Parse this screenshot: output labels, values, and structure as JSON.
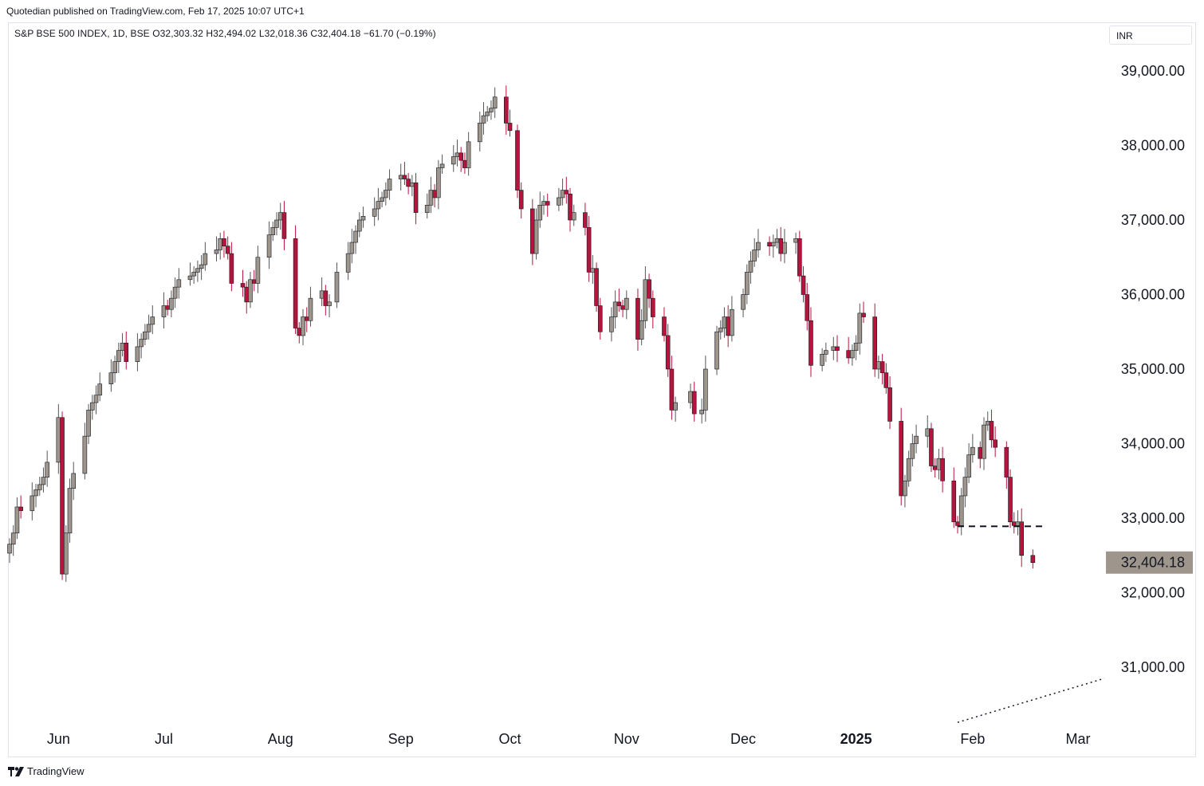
{
  "header": {
    "published_line": "Quotedian published on TradingView.com, Feb 17, 2025 10:07 UTC+1",
    "legend_text": "S&P BSE 500 INDEX, 1D, BSE  O32,303.32  H32,494.02  L32,018.36  C32,404.18  −61.70 (−0.19%)",
    "currency": "INR"
  },
  "footer": {
    "brand": "TradingView"
  },
  "colors": {
    "up": "#9e968c",
    "down": "#b5153d",
    "wick_down": "#b5153d",
    "wick_up": "#555555",
    "last_label_bg": "#9e968c"
  },
  "chart_data": {
    "type": "candlestick",
    "symbol": "S&P BSE 500 INDEX",
    "interval": "1D",
    "ylim": [
      30200,
      39700
    ],
    "y_ticks": [
      "39,000.00",
      "38,000.00",
      "37,000.00",
      "36,000.00",
      "35,000.00",
      "34,000.00",
      "33,000.00",
      "32,000.00",
      "31,000.00"
    ],
    "y_tick_values": [
      39000,
      38000,
      37000,
      36000,
      35000,
      34000,
      33000,
      32000,
      31000
    ],
    "x_ticks": [
      {
        "label": "Jun",
        "date": "2024-06-03"
      },
      {
        "label": "Jul",
        "date": "2024-07-01"
      },
      {
        "label": "Aug",
        "date": "2024-08-01"
      },
      {
        "label": "Sep",
        "date": "2024-09-02"
      },
      {
        "label": "Oct",
        "date": "2024-10-01"
      },
      {
        "label": "Nov",
        "date": "2024-11-01"
      },
      {
        "label": "Dec",
        "date": "2024-12-02"
      },
      {
        "label": "2025",
        "date": "2025-01-01",
        "bold": true
      },
      {
        "label": "Feb",
        "date": "2025-02-01"
      },
      {
        "label": "Mar",
        "date": "2025-03-01"
      }
    ],
    "last_price_label": "32,404.18",
    "last_price": 32404.18,
    "support_line": {
      "value": 32890,
      "from": "2025-01-28",
      "to": "2025-02-20",
      "style": "dashed"
    },
    "trend_line": {
      "from": {
        "date": "2025-01-28",
        "value": 30260
      },
      "to": {
        "date": "2025-03-08",
        "value": 30850
      },
      "style": "dotted"
    },
    "closes": [
      {
        "date": "2024-05-21",
        "close": 32650
      },
      {
        "date": "2024-05-22",
        "close": 32800
      },
      {
        "date": "2024-05-23",
        "close": 33150
      },
      {
        "date": "2024-05-24",
        "close": 33100
      },
      {
        "date": "2024-05-27",
        "close": 33300
      },
      {
        "date": "2024-05-28",
        "close": 33380
      },
      {
        "date": "2024-05-29",
        "close": 33450
      },
      {
        "date": "2024-05-30",
        "close": 33550
      },
      {
        "date": "2024-05-31",
        "close": 33750
      },
      {
        "date": "2024-06-03",
        "close": 34350
      },
      {
        "date": "2024-06-04",
        "close": 32250
      },
      {
        "date": "2024-06-05",
        "close": 32800
      },
      {
        "date": "2024-06-06",
        "close": 33400
      },
      {
        "date": "2024-06-07",
        "close": 33600
      },
      {
        "date": "2024-06-10",
        "close": 34100
      },
      {
        "date": "2024-06-11",
        "close": 34450
      },
      {
        "date": "2024-06-12",
        "close": 34550
      },
      {
        "date": "2024-06-13",
        "close": 34650
      },
      {
        "date": "2024-06-14",
        "close": 34800
      },
      {
        "date": "2024-06-17",
        "close": 34950
      },
      {
        "date": "2024-06-18",
        "close": 35100
      },
      {
        "date": "2024-06-19",
        "close": 35250
      },
      {
        "date": "2024-06-20",
        "close": 35350
      },
      {
        "date": "2024-06-21",
        "close": 35100
      },
      {
        "date": "2024-06-24",
        "close": 35300
      },
      {
        "date": "2024-06-25",
        "close": 35400
      },
      {
        "date": "2024-06-26",
        "close": 35500
      },
      {
        "date": "2024-06-27",
        "close": 35600
      },
      {
        "date": "2024-06-28",
        "close": 35700
      },
      {
        "date": "2024-07-01",
        "close": 35850
      },
      {
        "date": "2024-07-02",
        "close": 35800
      },
      {
        "date": "2024-07-03",
        "close": 35950
      },
      {
        "date": "2024-07-04",
        "close": 36100
      },
      {
        "date": "2024-07-05",
        "close": 36200
      },
      {
        "date": "2024-07-08",
        "close": 36250
      },
      {
        "date": "2024-07-09",
        "close": 36300
      },
      {
        "date": "2024-07-10",
        "close": 36350
      },
      {
        "date": "2024-07-11",
        "close": 36400
      },
      {
        "date": "2024-07-12",
        "close": 36550
      },
      {
        "date": "2024-07-15",
        "close": 36600
      },
      {
        "date": "2024-07-16",
        "close": 36750
      },
      {
        "date": "2024-07-17",
        "close": 36650
      },
      {
        "date": "2024-07-18",
        "close": 36550
      },
      {
        "date": "2024-07-19",
        "close": 36150
      },
      {
        "date": "2024-07-22",
        "close": 36100
      },
      {
        "date": "2024-07-23",
        "close": 35900
      },
      {
        "date": "2024-07-24",
        "close": 36200
      },
      {
        "date": "2024-07-25",
        "close": 36150
      },
      {
        "date": "2024-07-26",
        "close": 36500
      },
      {
        "date": "2024-07-29",
        "close": 36800
      },
      {
        "date": "2024-07-30",
        "close": 36900
      },
      {
        "date": "2024-07-31",
        "close": 37000
      },
      {
        "date": "2024-08-01",
        "close": 37100
      },
      {
        "date": "2024-08-02",
        "close": 36750
      },
      {
        "date": "2024-08-05",
        "close": 35550
      },
      {
        "date": "2024-08-06",
        "close": 35450
      },
      {
        "date": "2024-08-07",
        "close": 35700
      },
      {
        "date": "2024-08-08",
        "close": 35650
      },
      {
        "date": "2024-08-09",
        "close": 35950
      },
      {
        "date": "2024-08-12",
        "close": 36050
      },
      {
        "date": "2024-08-13",
        "close": 35850
      },
      {
        "date": "2024-08-14",
        "close": 35900
      },
      {
        "date": "2024-08-16",
        "close": 36300
      },
      {
        "date": "2024-08-19",
        "close": 36550
      },
      {
        "date": "2024-08-20",
        "close": 36700
      },
      {
        "date": "2024-08-21",
        "close": 36850
      },
      {
        "date": "2024-08-22",
        "close": 37000
      },
      {
        "date": "2024-08-23",
        "close": 37050
      },
      {
        "date": "2024-08-26",
        "close": 37150
      },
      {
        "date": "2024-08-27",
        "close": 37250
      },
      {
        "date": "2024-08-28",
        "close": 37300
      },
      {
        "date": "2024-08-29",
        "close": 37400
      },
      {
        "date": "2024-08-30",
        "close": 37550
      },
      {
        "date": "2024-09-02",
        "close": 37600
      },
      {
        "date": "2024-09-03",
        "close": 37550
      },
      {
        "date": "2024-09-04",
        "close": 37450
      },
      {
        "date": "2024-09-05",
        "close": 37500
      },
      {
        "date": "2024-09-06",
        "close": 37100
      },
      {
        "date": "2024-09-09",
        "close": 37200
      },
      {
        "date": "2024-09-10",
        "close": 37400
      },
      {
        "date": "2024-09-11",
        "close": 37300
      },
      {
        "date": "2024-09-12",
        "close": 37700
      },
      {
        "date": "2024-09-13",
        "close": 37750
      },
      {
        "date": "2024-09-16",
        "close": 37850
      },
      {
        "date": "2024-09-17",
        "close": 37900
      },
      {
        "date": "2024-09-18",
        "close": 37800
      },
      {
        "date": "2024-09-19",
        "close": 37700
      },
      {
        "date": "2024-09-20",
        "close": 38050
      },
      {
        "date": "2024-09-23",
        "close": 38300
      },
      {
        "date": "2024-09-24",
        "close": 38400
      },
      {
        "date": "2024-09-25",
        "close": 38450
      },
      {
        "date": "2024-09-26",
        "close": 38500
      },
      {
        "date": "2024-09-27",
        "close": 38650
      },
      {
        "date": "2024-09-30",
        "close": 38300
      },
      {
        "date": "2024-10-01",
        "close": 38200
      },
      {
        "date": "2024-10-03",
        "close": 37400
      },
      {
        "date": "2024-10-04",
        "close": 37150
      },
      {
        "date": "2024-10-07",
        "close": 36550
      },
      {
        "date": "2024-10-08",
        "close": 37000
      },
      {
        "date": "2024-10-09",
        "close": 37200
      },
      {
        "date": "2024-10-10",
        "close": 37250
      },
      {
        "date": "2024-10-11",
        "close": 37200
      },
      {
        "date": "2024-10-14",
        "close": 37300
      },
      {
        "date": "2024-10-15",
        "close": 37400
      },
      {
        "date": "2024-10-16",
        "close": 37350
      },
      {
        "date": "2024-10-17",
        "close": 37000
      },
      {
        "date": "2024-10-18",
        "close": 37100
      },
      {
        "date": "2024-10-21",
        "close": 36900
      },
      {
        "date": "2024-10-22",
        "close": 36300
      },
      {
        "date": "2024-10-23",
        "close": 36350
      },
      {
        "date": "2024-10-24",
        "close": 35850
      },
      {
        "date": "2024-10-25",
        "close": 35500
      },
      {
        "date": "2024-10-28",
        "close": 35700
      },
      {
        "date": "2024-10-29",
        "close": 35900
      },
      {
        "date": "2024-10-30",
        "close": 35850
      },
      {
        "date": "2024-10-31",
        "close": 35800
      },
      {
        "date": "2024-11-01",
        "close": 35950
      },
      {
        "date": "2024-11-04",
        "close": 35400
      },
      {
        "date": "2024-11-05",
        "close": 35650
      },
      {
        "date": "2024-11-06",
        "close": 36200
      },
      {
        "date": "2024-11-07",
        "close": 35950
      },
      {
        "date": "2024-11-08",
        "close": 35700
      },
      {
        "date": "2024-11-11",
        "close": 35450
      },
      {
        "date": "2024-11-12",
        "close": 35000
      },
      {
        "date": "2024-11-13",
        "close": 34450
      },
      {
        "date": "2024-11-14",
        "close": 34550
      },
      {
        "date": "2024-11-18",
        "close": 34700
      },
      {
        "date": "2024-11-19",
        "close": 34400
      },
      {
        "date": "2024-11-21",
        "close": 34450
      },
      {
        "date": "2024-11-22",
        "close": 35000
      },
      {
        "date": "2024-11-25",
        "close": 35500
      },
      {
        "date": "2024-11-26",
        "close": 35550
      },
      {
        "date": "2024-11-27",
        "close": 35700
      },
      {
        "date": "2024-11-28",
        "close": 35450
      },
      {
        "date": "2024-11-29",
        "close": 35800
      },
      {
        "date": "2024-12-02",
        "close": 36000
      },
      {
        "date": "2024-12-03",
        "close": 36300
      },
      {
        "date": "2024-12-04",
        "close": 36450
      },
      {
        "date": "2024-12-05",
        "close": 36600
      },
      {
        "date": "2024-12-06",
        "close": 36700
      },
      {
        "date": "2024-12-09",
        "close": 36650
      },
      {
        "date": "2024-12-10",
        "close": 36700
      },
      {
        "date": "2024-12-11",
        "close": 36750
      },
      {
        "date": "2024-12-12",
        "close": 36550
      },
      {
        "date": "2024-12-13",
        "close": 36700
      },
      {
        "date": "2024-12-16",
        "close": 36750
      },
      {
        "date": "2024-12-17",
        "close": 36250
      },
      {
        "date": "2024-12-18",
        "close": 36000
      },
      {
        "date": "2024-12-19",
        "close": 35650
      },
      {
        "date": "2024-12-20",
        "close": 35050
      },
      {
        "date": "2024-12-23",
        "close": 35200
      },
      {
        "date": "2024-12-24",
        "close": 35250
      },
      {
        "date": "2024-12-26",
        "close": 35300
      },
      {
        "date": "2024-12-27",
        "close": 35250
      },
      {
        "date": "2024-12-30",
        "close": 35150
      },
      {
        "date": "2024-12-31",
        "close": 35250
      },
      {
        "date": "2025-01-01",
        "close": 35350
      },
      {
        "date": "2025-01-02",
        "close": 35750
      },
      {
        "date": "2025-01-03",
        "close": 35700
      },
      {
        "date": "2025-01-06",
        "close": 35000
      },
      {
        "date": "2025-01-07",
        "close": 35100
      },
      {
        "date": "2025-01-08",
        "close": 34950
      },
      {
        "date": "2025-01-09",
        "close": 34750
      },
      {
        "date": "2025-01-10",
        "close": 34300
      },
      {
        "date": "2025-01-13",
        "close": 33300
      },
      {
        "date": "2025-01-14",
        "close": 33500
      },
      {
        "date": "2025-01-15",
        "close": 33800
      },
      {
        "date": "2025-01-16",
        "close": 34000
      },
      {
        "date": "2025-01-17",
        "close": 34100
      },
      {
        "date": "2025-01-20",
        "close": 34200
      },
      {
        "date": "2025-01-21",
        "close": 33700
      },
      {
        "date": "2025-01-22",
        "close": 33650
      },
      {
        "date": "2025-01-23",
        "close": 33800
      },
      {
        "date": "2025-01-24",
        "close": 33500
      },
      {
        "date": "2025-01-27",
        "close": 32950
      },
      {
        "date": "2025-01-28",
        "close": 32900
      },
      {
        "date": "2025-01-29",
        "close": 33300
      },
      {
        "date": "2025-01-30",
        "close": 33550
      },
      {
        "date": "2025-01-31",
        "close": 33850
      },
      {
        "date": "2025-02-01",
        "close": 33950
      },
      {
        "date": "2025-02-03",
        "close": 33800
      },
      {
        "date": "2025-02-04",
        "close": 34250
      },
      {
        "date": "2025-02-05",
        "close": 34300
      },
      {
        "date": "2025-02-06",
        "close": 34050
      },
      {
        "date": "2025-02-07",
        "close": 33950
      },
      {
        "date": "2025-02-10",
        "close": 33550
      },
      {
        "date": "2025-02-11",
        "close": 32950
      },
      {
        "date": "2025-02-12",
        "close": 32900
      },
      {
        "date": "2025-02-13",
        "close": 32950
      },
      {
        "date": "2025-02-14",
        "close": 32500
      },
      {
        "date": "2025-02-17",
        "close": 32404.18
      }
    ]
  }
}
